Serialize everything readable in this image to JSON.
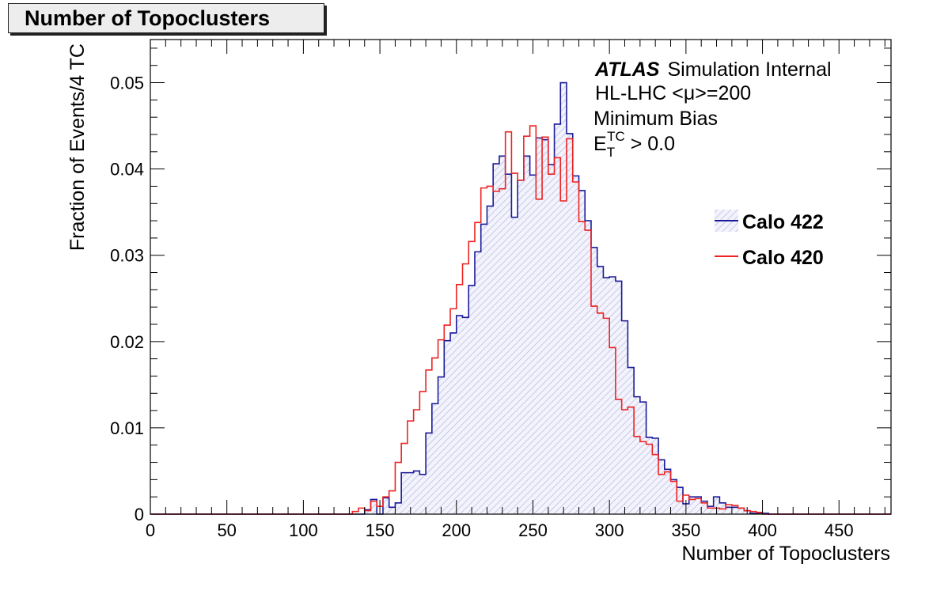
{
  "title_box": "Number of Topoclusters",
  "chart_data": {
    "type": "step-histogram",
    "title": "Number of Topoclusters",
    "xlabel": "Number of Topoclusters",
    "ylabel": "Fraction of Events/4 TC",
    "xlim": [
      0,
      484
    ],
    "ylim": [
      0,
      0.055
    ],
    "bin_width": 4,
    "x_ticks": [
      0,
      50,
      100,
      150,
      200,
      250,
      300,
      350,
      400,
      450
    ],
    "y_ticks": [
      0,
      0.01,
      0.02,
      0.03,
      0.04,
      0.05
    ],
    "x_tick_labels": [
      "0",
      "50",
      "100",
      "150",
      "200",
      "250",
      "300",
      "350",
      "400",
      "450"
    ],
    "y_tick_labels": [
      "0",
      "0.01",
      "0.02",
      "0.03",
      "0.04",
      "0.05"
    ],
    "annotations": {
      "atlas": "ATLAS",
      "atlas_suffix": "Simulation Internal",
      "line2": "HL-LHC <μ>=200",
      "line3": "Minimum Bias",
      "line4_main": "E",
      "line4_sub": "T",
      "line4_sup": "TC",
      "line4_rest": " > 0.0"
    },
    "legend_position": "right",
    "series": [
      {
        "name": "Calo 422",
        "color": "#1a1a9a",
        "fill": "hatched-lavender",
        "x_start": 132,
        "values": [
          0.0,
          0.0,
          0.0005,
          0.0017,
          0.0,
          0.0019,
          0.0008,
          0.0013,
          0.0048,
          0.0048,
          0.005,
          0.0046,
          0.0094,
          0.0128,
          0.0159,
          0.0201,
          0.021,
          0.023,
          0.0228,
          0.0265,
          0.0304,
          0.0336,
          0.0357,
          0.0406,
          0.0415,
          0.0394,
          0.0344,
          0.0387,
          0.0415,
          0.0393,
          0.0436,
          0.0434,
          0.0405,
          0.0452,
          0.05,
          0.0441,
          0.0392,
          0.0375,
          0.034,
          0.0309,
          0.0287,
          0.0274,
          0.0275,
          0.027,
          0.0224,
          0.017,
          0.0136,
          0.013,
          0.0089,
          0.0088,
          0.0063,
          0.0052,
          0.004,
          0.0031,
          0.0012,
          0.002,
          0.002,
          0.0015,
          0.0009,
          0.002,
          0.0013,
          0.0008,
          0.0008,
          0.0007,
          0.0004,
          0.0001,
          0.0001,
          0.0001
        ]
      },
      {
        "name": "Calo 420",
        "color": "#ee2222",
        "fill": "none",
        "x_start": 124,
        "values": [
          0.0,
          0.0,
          0.0003,
          0.0007,
          0.0004,
          0.0015,
          0.0009,
          0.002,
          0.0027,
          0.006,
          0.0082,
          0.0108,
          0.0121,
          0.0142,
          0.0167,
          0.0181,
          0.0202,
          0.0219,
          0.0238,
          0.0266,
          0.029,
          0.0316,
          0.0338,
          0.0378,
          0.038,
          0.0374,
          0.0377,
          0.0443,
          0.0395,
          0.0387,
          0.0438,
          0.045,
          0.0365,
          0.0437,
          0.0394,
          0.0413,
          0.0363,
          0.0435,
          0.0385,
          0.0339,
          0.0329,
          0.0241,
          0.0233,
          0.0227,
          0.0193,
          0.0133,
          0.0121,
          0.0124,
          0.009,
          0.0084,
          0.0081,
          0.0069,
          0.0046,
          0.0049,
          0.0038,
          0.0015,
          0.0022,
          0.0017,
          0.0018,
          0.0013,
          0.0007,
          0.0007,
          0.0006,
          0.0011,
          0.001,
          0.0007,
          0.0004,
          0.0003,
          0.0002
        ]
      }
    ]
  }
}
